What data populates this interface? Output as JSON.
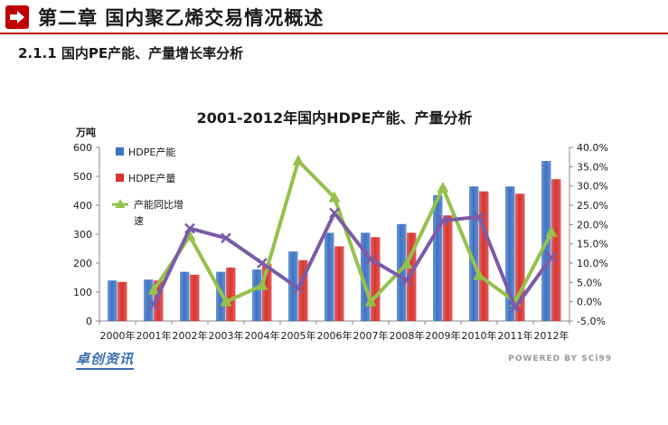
{
  "header": {
    "title": "第二章  国内聚乙烯交易情况概述",
    "arrow_icon": "arrow-right-icon",
    "accent_color": "#c00000"
  },
  "subtitle": "2.1.1 国内PE产能、产量增长率分析",
  "footer": {
    "logo_text": "卓创资讯",
    "powered_text": "POWERED BY SCi99"
  },
  "chart_data": {
    "type": "bar",
    "title": "2001-2012年国内HDPE产能、产量分析",
    "ylabel": "万吨",
    "ylim": [
      0,
      600
    ],
    "y_ticks": [
      "0",
      "100",
      "200",
      "300",
      "400",
      "500",
      "600"
    ],
    "y2lim": [
      -5,
      40
    ],
    "y2_ticks": [
      "-5.0%",
      "0.0%",
      "5.0%",
      "10.0%",
      "15.0%",
      "20.0%",
      "25.0%",
      "30.0%",
      "35.0%",
      "40.0%"
    ],
    "categories": [
      "2000年",
      "2001年",
      "2002年",
      "2003年",
      "2004年",
      "2005年",
      "2006年",
      "2007年",
      "2008年",
      "2009年",
      "2010年",
      "2011年",
      "2012年"
    ],
    "legend_position": "top-left",
    "series": [
      {
        "name": "HDPE产能",
        "type": "bar",
        "axis": "left",
        "color": "#3e73c4",
        "values": [
          140,
          143,
          170,
          170,
          178,
          240,
          305,
          305,
          335,
          435,
          465,
          465,
          553
        ]
      },
      {
        "name": "HDPE产量",
        "type": "bar",
        "axis": "left",
        "color": "#d9342f",
        "values": [
          135,
          140,
          160,
          185,
          198,
          210,
          258,
          290,
          305,
          365,
          448,
          440,
          490
        ]
      },
      {
        "name": "产能同比增速",
        "type": "line",
        "axis": "right",
        "color": "#94c14a",
        "values": [
          null,
          3,
          17,
          0,
          4.2,
          36.5,
          27,
          0,
          9.8,
          29.5,
          6.8,
          0,
          18
        ]
      },
      {
        "name": "",
        "type": "line",
        "axis": "right",
        "color": "#7b5ba8",
        "values": [
          null,
          -0.8,
          19,
          16.5,
          10,
          3.5,
          23,
          11,
          5.5,
          21,
          22,
          -1.5,
          11.5
        ]
      }
    ]
  }
}
